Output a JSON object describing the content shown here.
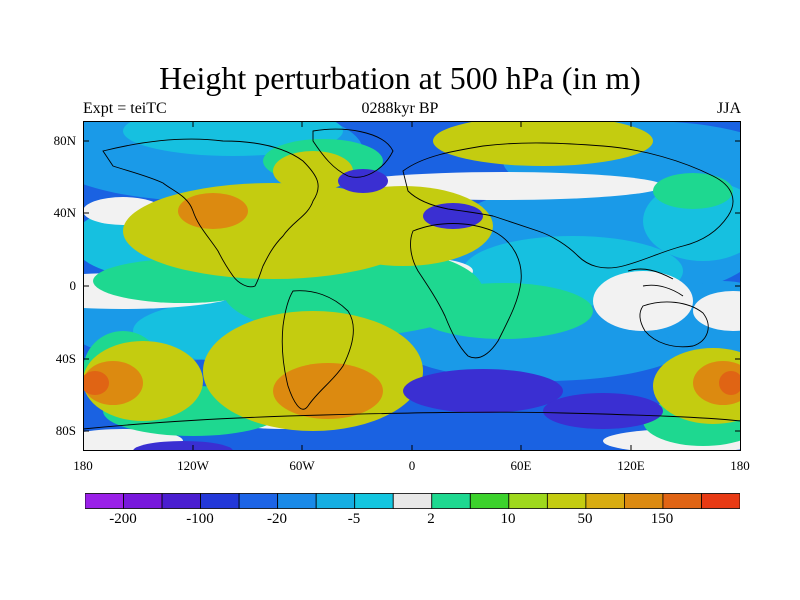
{
  "title": "Height perturbation at 500 hPa (in m)",
  "left_label": "Expt = teiTC",
  "center_label": "0288kyr BP",
  "right_label": "JJA",
  "map": {
    "lat_ticks": [
      "80N",
      "40N",
      "0",
      "40S",
      "80S"
    ],
    "lon_ticks": [
      "180",
      "120W",
      "60W",
      "0",
      "60E",
      "120E",
      "180"
    ]
  },
  "colorbar": {
    "colors": [
      "#9a20e8",
      "#7818dc",
      "#4a1ed0",
      "#2338d8",
      "#1c64e6",
      "#1a8ae8",
      "#15aee2",
      "#13c6e0",
      "#e8e8e8",
      "#1ed890",
      "#3cd22c",
      "#9ed81c",
      "#c4cc10",
      "#d8ac10",
      "#dc8a10",
      "#e06414",
      "#e83a14"
    ],
    "labels": [
      "-200",
      "-100",
      "-20",
      "-5",
      "2",
      "10",
      "50",
      "150"
    ]
  },
  "palette": {
    "deep_blue": "#3a2fd2",
    "mid_blue": "#1a62e2",
    "light_blue": "#1a9ae8",
    "cyan": "#16c0e0",
    "white": "#f2f2f2",
    "green": "#1ed890",
    "yellow": "#c4cc10",
    "orange": "#dc8a10",
    "red": "#e06414"
  }
}
